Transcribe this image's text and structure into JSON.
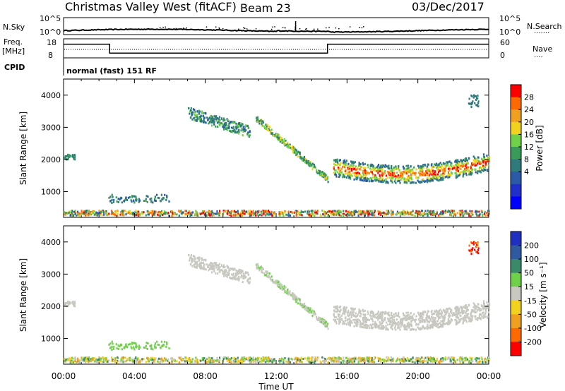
{
  "header": {
    "title": "Christmas Valley West (fitACF)",
    "beam": "Beam 23",
    "date": "03/Dec/2017"
  },
  "params": {
    "nsky_label": "N.Sky",
    "nsky_ticks": [
      "10^5",
      "10^0"
    ],
    "nsearch_label": "N.Search",
    "nsearch_ticks": [
      "10^5",
      "10^0"
    ],
    "freq_label_1": "Freq.",
    "freq_label_2": "[MHz]",
    "freq_ticks": [
      "18",
      "8"
    ],
    "nave_label": "Nave",
    "nave_ticks": [
      "60",
      "0"
    ],
    "cpid_label": "CPID",
    "mode": "normal (fast) 151 RF"
  },
  "chart_data": [
    {
      "type": "line",
      "name": "frequency",
      "x": [
        0,
        2.6,
        2.6,
        14.9,
        14.9,
        24
      ],
      "y": [
        15.2,
        15.2,
        10.5,
        10.5,
        15.2,
        15.2
      ],
      "ylim": [
        8,
        18
      ]
    },
    {
      "type": "heatmap",
      "ylabel": "Slant Range [km]",
      "colorbar_label": "Power [dB]",
      "colorbar_ticks": [
        "28",
        "24",
        "20",
        "16",
        "12",
        "8",
        "4"
      ],
      "colorbar_colors": [
        "#ff0000",
        "#ff6a00",
        "#f0a020",
        "#f2d21e",
        "#6fd04a",
        "#3a9a5a",
        "#2f7a7a",
        "#2a5aa8",
        "#2030c8",
        "#0000ff"
      ],
      "ylim": [
        200,
        4500
      ],
      "yticks": [
        "4000",
        "3000",
        "2000",
        "1000"
      ],
      "xlim": [
        0,
        24
      ],
      "echo_regions": [
        {
          "x": [
            0.0,
            0.6
          ],
          "y": [
            2000,
            2150
          ]
        },
        {
          "x": [
            7.0,
            10.5
          ],
          "y": [
            2700,
            3600
          ]
        },
        {
          "x": [
            10.8,
            14.9
          ],
          "y": [
            1300,
            3400
          ]
        },
        {
          "x": [
            15.2,
            24.0
          ],
          "y": [
            1250,
            2350
          ]
        },
        {
          "x": [
            2.5,
            6.0
          ],
          "y": [
            650,
            900
          ]
        },
        {
          "x": [
            0.0,
            24.0
          ],
          "y": [
            200,
            450
          ]
        }
      ]
    },
    {
      "type": "heatmap",
      "xlabel": "Time UT",
      "ylabel": "Slant Range [km]",
      "colorbar_label": "Velocity [m s⁻¹]",
      "colorbar_ticks": [
        "200",
        "100",
        "50",
        "15",
        "-15",
        "-50",
        "-100",
        "-200"
      ],
      "colorbar_colors": [
        "#1f2fc0",
        "#2f5aa0",
        "#3a8a6a",
        "#6fd04a",
        "#c8c8c0",
        "#f2d21e",
        "#f0a020",
        "#ff6a00",
        "#ff0000"
      ],
      "ylim": [
        200,
        4500
      ],
      "yticks": [
        "4000",
        "3000",
        "2000",
        "1000"
      ],
      "xlim": [
        0,
        24
      ],
      "xticks": [
        "00:00",
        "04:00",
        "08:00",
        "12:00",
        "16:00",
        "20:00",
        "00:00"
      ]
    }
  ]
}
